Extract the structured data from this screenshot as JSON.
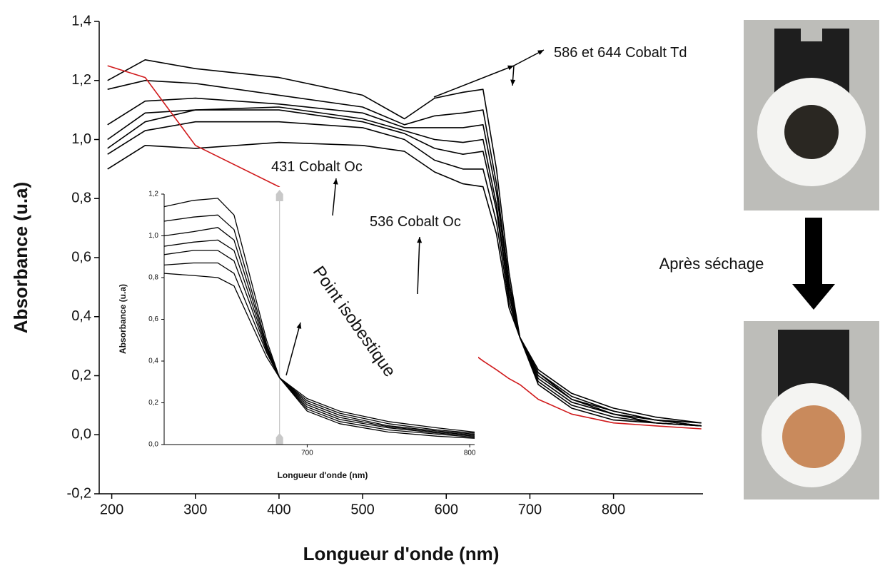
{
  "chart_data": [
    {
      "type": "line",
      "xlabel": "Longueur d'onde (nm)",
      "ylabel": "Absorbance (u.a)",
      "xlim": [
        185,
        907
      ],
      "ylim": [
        -0.2,
        1.4
      ],
      "xticks": [
        200,
        300,
        400,
        500,
        600,
        700,
        800
      ],
      "yticks": [
        {
          "value": -0.2,
          "label": "-0,2"
        },
        {
          "value": 0,
          "label": "0,0"
        },
        {
          "value": 0.2,
          "label": "0,2"
        },
        {
          "value": 0.4,
          "label": "0,4"
        },
        {
          "value": 0.6,
          "label": "0,6"
        },
        {
          "value": 0.8,
          "label": "0,8"
        },
        {
          "value": 1.0,
          "label": "1,0"
        },
        {
          "value": 1.2,
          "label": "1,2"
        },
        {
          "value": 1.4,
          "label": "1,4"
        }
      ],
      "x": [
        195,
        240,
        300,
        400,
        500,
        550,
        586,
        620,
        644,
        660,
        675,
        688,
        710,
        750,
        800,
        850,
        905
      ],
      "series": [
        {
          "color": "#000000",
          "values": [
            1.2,
            1.27,
            1.24,
            1.21,
            1.15,
            1.07,
            1.14,
            1.16,
            1.17,
            0.9,
            0.55,
            0.33,
            0.22,
            0.14,
            0.09,
            0.06,
            0.04
          ]
        },
        {
          "color": "#000000",
          "values": [
            1.17,
            1.2,
            1.19,
            1.15,
            1.11,
            1.05,
            1.08,
            1.09,
            1.1,
            0.85,
            0.52,
            0.33,
            0.21,
            0.13,
            0.08,
            0.05,
            0.04
          ]
        },
        {
          "color": "#000000",
          "values": [
            1.05,
            1.13,
            1.14,
            1.12,
            1.09,
            1.04,
            1.04,
            1.04,
            1.05,
            0.82,
            0.5,
            0.33,
            0.21,
            0.12,
            0.08,
            0.05,
            0.03
          ]
        },
        {
          "color": "#000000",
          "values": [
            1.0,
            1.09,
            1.1,
            1.11,
            1.07,
            1.03,
            1.0,
            0.99,
            1.0,
            0.78,
            0.48,
            0.33,
            0.2,
            0.12,
            0.07,
            0.05,
            0.03
          ]
        },
        {
          "color": "#000000",
          "values": [
            0.97,
            1.06,
            1.1,
            1.1,
            1.06,
            1.02,
            0.97,
            0.95,
            0.96,
            0.76,
            0.47,
            0.33,
            0.19,
            0.11,
            0.07,
            0.04,
            0.03
          ]
        },
        {
          "color": "#000000",
          "values": [
            0.95,
            1.03,
            1.06,
            1.06,
            1.04,
            1.0,
            0.93,
            0.9,
            0.9,
            0.72,
            0.45,
            0.33,
            0.18,
            0.1,
            0.06,
            0.04,
            0.03
          ]
        },
        {
          "color": "#000000",
          "values": [
            0.9,
            0.98,
            0.97,
            0.99,
            0.98,
            0.96,
            0.89,
            0.85,
            0.84,
            0.68,
            0.43,
            0.33,
            0.17,
            0.09,
            0.05,
            0.04,
            0.03
          ]
        },
        {
          "color": "#d0191b",
          "values": [
            1.25,
            1.21,
            0.98,
            0.84,
            0.62,
            0.54,
            0.44,
            0.3,
            0.25,
            0.22,
            0.19,
            0.17,
            0.12,
            0.07,
            0.04,
            0.03,
            0.02
          ]
        }
      ],
      "annotations": [
        "586 et 644 Cobalt Td",
        "431 Cobalt Oc",
        "536 Cobalt Oc",
        "Point isobestique",
        "Après séchage"
      ]
    },
    {
      "type": "line",
      "xlabel": "Longueur d'onde (nm)",
      "ylabel": "Absorbance (u.a)",
      "xlim": [
        612,
        803
      ],
      "ylim": [
        0,
        1.2
      ],
      "xticks": [
        700,
        800
      ],
      "yticks": [
        {
          "value": 0,
          "label": "0,0"
        },
        {
          "value": 0.2,
          "label": "0,2"
        },
        {
          "value": 0.4,
          "label": "0,4"
        },
        {
          "value": 0.6,
          "label": "0,6"
        },
        {
          "value": 0.8,
          "label": "0,8"
        },
        {
          "value": 1.0,
          "label": "1,0"
        },
        {
          "value": 1.2,
          "label": "1,2"
        }
      ],
      "marker_x": 683,
      "x": [
        612,
        630,
        645,
        655,
        665,
        675,
        683,
        700,
        720,
        750,
        780,
        803
      ],
      "series": [
        {
          "color": "#000000",
          "values": [
            1.14,
            1.17,
            1.18,
            1.1,
            0.8,
            0.5,
            0.32,
            0.22,
            0.16,
            0.11,
            0.08,
            0.06
          ]
        },
        {
          "color": "#000000",
          "values": [
            1.07,
            1.09,
            1.1,
            1.03,
            0.76,
            0.48,
            0.32,
            0.21,
            0.15,
            0.1,
            0.07,
            0.055
          ]
        },
        {
          "color": "#000000",
          "values": [
            1.0,
            1.02,
            1.04,
            0.98,
            0.73,
            0.47,
            0.32,
            0.2,
            0.14,
            0.09,
            0.065,
            0.05
          ]
        },
        {
          "color": "#000000",
          "values": [
            0.95,
            0.97,
            0.98,
            0.93,
            0.7,
            0.46,
            0.32,
            0.19,
            0.13,
            0.085,
            0.06,
            0.045
          ]
        },
        {
          "color": "#000000",
          "values": [
            0.91,
            0.93,
            0.93,
            0.88,
            0.67,
            0.45,
            0.32,
            0.18,
            0.12,
            0.08,
            0.055,
            0.04
          ]
        },
        {
          "color": "#000000",
          "values": [
            0.86,
            0.87,
            0.87,
            0.82,
            0.63,
            0.44,
            0.32,
            0.17,
            0.11,
            0.07,
            0.05,
            0.035
          ]
        },
        {
          "color": "#000000",
          "values": [
            0.82,
            0.81,
            0.8,
            0.76,
            0.59,
            0.42,
            0.32,
            0.16,
            0.1,
            0.06,
            0.04,
            0.03
          ]
        }
      ]
    }
  ]
}
